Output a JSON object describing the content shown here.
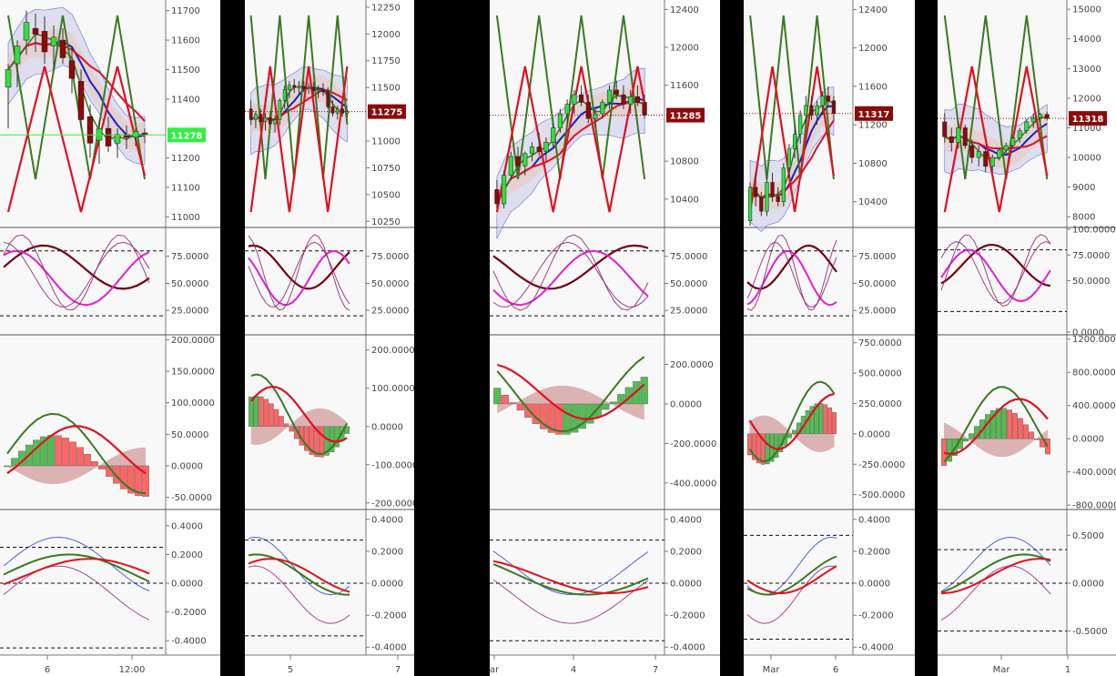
{
  "colors": {
    "up_candle": "#33dd44",
    "down_candle": "#8b0a0a",
    "band_fill": "#c8c8e6",
    "env_fill": "#e8c8c0",
    "red_line": "#e01020",
    "green_line": "#3a7a20",
    "blue_line": "#1020d0",
    "stoch_dark": "#700010",
    "stoch_pink": "#e020d0",
    "stoch_purple": "#902070",
    "hist_up": "#55bb55",
    "hist_down": "#ff6666",
    "badge_green": "#33ee44",
    "badge_red": "#8b0a0a"
  },
  "chart_data": [
    {
      "type": "line",
      "panel": 1,
      "price": {
        "ticks": [
          "11700",
          "11600",
          "11500",
          "11400",
          "11300",
          "11200",
          "11100",
          "11000"
        ],
        "ylim": [
          10970,
          11730
        ],
        "last_label": "11278",
        "last_value": 11278,
        "badge_style": "green",
        "candles": [
          {
            "o": 11440,
            "h": 11520,
            "l": 11300,
            "c": 11500
          },
          {
            "o": 11520,
            "h": 11600,
            "l": 11440,
            "c": 11580
          },
          {
            "o": 11600,
            "h": 11700,
            "l": 11550,
            "c": 11660
          },
          {
            "o": 11640,
            "h": 11690,
            "l": 11560,
            "c": 11620
          },
          {
            "o": 11630,
            "h": 11680,
            "l": 11520,
            "c": 11560
          },
          {
            "o": 11580,
            "h": 11650,
            "l": 11500,
            "c": 11610
          },
          {
            "o": 11600,
            "h": 11640,
            "l": 11520,
            "c": 11540
          },
          {
            "o": 11530,
            "h": 11580,
            "l": 11420,
            "c": 11470
          },
          {
            "o": 11460,
            "h": 11500,
            "l": 11300,
            "c": 11330
          },
          {
            "o": 11340,
            "h": 11380,
            "l": 11200,
            "c": 11250
          },
          {
            "o": 11260,
            "h": 11330,
            "l": 11180,
            "c": 11300
          },
          {
            "o": 11300,
            "h": 11340,
            "l": 11220,
            "c": 11240
          },
          {
            "o": 11250,
            "h": 11300,
            "l": 11200,
            "c": 11280
          },
          {
            "o": 11280,
            "h": 11310,
            "l": 11230,
            "c": 11270
          },
          {
            "o": 11270,
            "h": 11300,
            "l": 11240,
            "c": 11290
          },
          {
            "o": 11285,
            "h": 11300,
            "l": 11250,
            "c": 11278
          }
        ]
      },
      "stoch": {
        "ticks": [
          "75.0000",
          "50.0000",
          "25.0000"
        ],
        "ylim": [
          5,
          100
        ],
        "dashed": [
          80,
          20
        ]
      },
      "macd": {
        "ticks": [
          "200.0000",
          "150.0000",
          "100.0000",
          "50.0000",
          "0.0000",
          "-50.0000"
        ],
        "ylim": [
          -65,
          205
        ]
      },
      "osc": {
        "ticks": [
          "0.4000",
          "0.2000",
          "0.0000",
          "-0.2000",
          "-0.4000"
        ],
        "ylim": [
          -0.5,
          0.5
        ],
        "dashed": [
          0.25,
          0.0,
          -0.45
        ]
      },
      "xticks": [
        "6",
        "12:00"
      ]
    },
    {
      "type": "line",
      "panel": 2,
      "price": {
        "ticks": [
          "12250",
          "12000",
          "11750",
          "11500",
          "11250",
          "11000",
          "10750",
          "10500",
          "10250"
        ],
        "ylim": [
          10210,
          12300
        ],
        "last_label": "11275",
        "last_value": 11275,
        "badge_style": "red",
        "candles": [
          {
            "o": 11300,
            "h": 11380,
            "l": 11150,
            "c": 11200
          },
          {
            "o": 11200,
            "h": 11280,
            "l": 11120,
            "c": 11250
          },
          {
            "o": 11250,
            "h": 11300,
            "l": 11150,
            "c": 11180
          },
          {
            "o": 11180,
            "h": 11260,
            "l": 11100,
            "c": 11220
          },
          {
            "o": 11220,
            "h": 11280,
            "l": 11130,
            "c": 11160
          },
          {
            "o": 11160,
            "h": 11240,
            "l": 11080,
            "c": 11200
          },
          {
            "o": 11200,
            "h": 11400,
            "l": 11150,
            "c": 11380
          },
          {
            "o": 11380,
            "h": 11520,
            "l": 11300,
            "c": 11480
          },
          {
            "o": 11480,
            "h": 11560,
            "l": 11400,
            "c": 11520
          },
          {
            "o": 11520,
            "h": 11580,
            "l": 11450,
            "c": 11500
          },
          {
            "o": 11500,
            "h": 11560,
            "l": 11440,
            "c": 11510
          },
          {
            "o": 11510,
            "h": 11560,
            "l": 11460,
            "c": 11490
          },
          {
            "o": 11490,
            "h": 11540,
            "l": 11440,
            "c": 11500
          },
          {
            "o": 11500,
            "h": 11550,
            "l": 11430,
            "c": 11470
          },
          {
            "o": 11470,
            "h": 11520,
            "l": 11400,
            "c": 11480
          },
          {
            "o": 11480,
            "h": 11540,
            "l": 11420,
            "c": 11460
          },
          {
            "o": 11460,
            "h": 11500,
            "l": 11300,
            "c": 11320
          },
          {
            "o": 11320,
            "h": 11380,
            "l": 11230,
            "c": 11260
          },
          {
            "o": 11260,
            "h": 11330,
            "l": 11200,
            "c": 11300
          },
          {
            "o": 11300,
            "h": 11340,
            "l": 11230,
            "c": 11260
          },
          {
            "o": 11260,
            "h": 11300,
            "l": 11220,
            "c": 11275
          }
        ]
      },
      "stoch": {
        "ticks": [
          "75.0000",
          "50.0000",
          "25.0000"
        ],
        "ylim": [
          5,
          100
        ],
        "dashed": [
          80,
          20
        ]
      },
      "macd": {
        "ticks": [
          "200.0000",
          "100.0000",
          "0.0000",
          "-100.0000",
          "-200.0000"
        ],
        "ylim": [
          -210,
          235
        ]
      },
      "osc": {
        "ticks": [
          "0.4000",
          "0.2000",
          "0.0000",
          "-0.2000",
          "-0.4000"
        ],
        "ylim": [
          -0.45,
          0.45
        ],
        "dashed": [
          0.27,
          0.0,
          -0.33
        ]
      },
      "xticks": [
        "5",
        "7"
      ]
    },
    {
      "type": "line",
      "panel": 3,
      "price": {
        "ticks": [
          "12400",
          "12000",
          "11600",
          "11200",
          "10800",
          "10400"
        ],
        "ylim": [
          10120,
          12480
        ],
        "last_label": "11285",
        "last_value": 11285,
        "badge_style": "red",
        "candles": [
          {
            "o": 10500,
            "h": 10600,
            "l": 10300,
            "c": 10350
          },
          {
            "o": 10350,
            "h": 10700,
            "l": 10300,
            "c": 10650
          },
          {
            "o": 10650,
            "h": 10900,
            "l": 10600,
            "c": 10850
          },
          {
            "o": 10850,
            "h": 10950,
            "l": 10700,
            "c": 10750
          },
          {
            "o": 10750,
            "h": 10900,
            "l": 10650,
            "c": 10880
          },
          {
            "o": 10880,
            "h": 11000,
            "l": 10800,
            "c": 10950
          },
          {
            "o": 10950,
            "h": 11100,
            "l": 10850,
            "c": 10900
          },
          {
            "o": 10900,
            "h": 11050,
            "l": 10800,
            "c": 11000
          },
          {
            "o": 11000,
            "h": 11200,
            "l": 10950,
            "c": 11150
          },
          {
            "o": 11150,
            "h": 11350,
            "l": 11100,
            "c": 11300
          },
          {
            "o": 11300,
            "h": 11450,
            "l": 11200,
            "c": 11400
          },
          {
            "o": 11400,
            "h": 11550,
            "l": 11300,
            "c": 11500
          },
          {
            "o": 11500,
            "h": 11600,
            "l": 11380,
            "c": 11420
          },
          {
            "o": 11420,
            "h": 11500,
            "l": 11200,
            "c": 11250
          },
          {
            "o": 11250,
            "h": 11350,
            "l": 11150,
            "c": 11300
          },
          {
            "o": 11300,
            "h": 11450,
            "l": 11250,
            "c": 11420
          },
          {
            "o": 11420,
            "h": 11600,
            "l": 11350,
            "c": 11550
          },
          {
            "o": 11550,
            "h": 11650,
            "l": 11450,
            "c": 11500
          },
          {
            "o": 11500,
            "h": 11600,
            "l": 11350,
            "c": 11400
          },
          {
            "o": 11400,
            "h": 11550,
            "l": 11300,
            "c": 11480
          },
          {
            "o": 11480,
            "h": 11600,
            "l": 11380,
            "c": 11420
          },
          {
            "o": 11420,
            "h": 11500,
            "l": 11250,
            "c": 11285
          }
        ]
      },
      "stoch": {
        "ticks": [
          "75.0000",
          "50.0000",
          "25.0000"
        ],
        "ylim": [
          5,
          100
        ],
        "dashed": [
          80,
          20
        ]
      },
      "macd": {
        "ticks": [
          "200.0000",
          "0.0000",
          "-200.0000",
          "-400.0000"
        ],
        "ylim": [
          -520,
          340
        ]
      },
      "osc": {
        "ticks": [
          "0.4000",
          "0.2000",
          "0.0000",
          "-0.2000",
          "-0.4000"
        ],
        "ylim": [
          -0.45,
          0.45
        ],
        "dashed": [
          0.27,
          0.0,
          -0.36
        ]
      },
      "xticks": [
        "ar",
        "4",
        "7"
      ]
    },
    {
      "type": "line",
      "panel": 4,
      "price": {
        "ticks": [
          "12400",
          "12000",
          "11600",
          "11200",
          "10800",
          "10400"
        ],
        "ylim": [
          10150,
          12480
        ],
        "last_label": "11317",
        "last_value": 11317,
        "badge_style": "red",
        "candles": [
          {
            "o": 10200,
            "h": 10600,
            "l": 10150,
            "c": 10550
          },
          {
            "o": 10550,
            "h": 10700,
            "l": 10350,
            "c": 10450
          },
          {
            "o": 10450,
            "h": 10500,
            "l": 10250,
            "c": 10300
          },
          {
            "o": 10300,
            "h": 10650,
            "l": 10250,
            "c": 10600
          },
          {
            "o": 10600,
            "h": 10700,
            "l": 10400,
            "c": 10450
          },
          {
            "o": 10450,
            "h": 10550,
            "l": 10350,
            "c": 10400
          },
          {
            "o": 10400,
            "h": 10800,
            "l": 10350,
            "c": 10750
          },
          {
            "o": 10750,
            "h": 11000,
            "l": 10650,
            "c": 10950
          },
          {
            "o": 10950,
            "h": 11200,
            "l": 10850,
            "c": 11100
          },
          {
            "o": 11100,
            "h": 11350,
            "l": 11000,
            "c": 11300
          },
          {
            "o": 11300,
            "h": 11500,
            "l": 11200,
            "c": 11400
          },
          {
            "o": 11400,
            "h": 11500,
            "l": 11250,
            "c": 11300
          },
          {
            "o": 11300,
            "h": 11450,
            "l": 11200,
            "c": 11400
          },
          {
            "o": 11400,
            "h": 11550,
            "l": 11300,
            "c": 11500
          },
          {
            "o": 11500,
            "h": 11600,
            "l": 11380,
            "c": 11450
          },
          {
            "o": 11450,
            "h": 11500,
            "l": 11250,
            "c": 11317
          }
        ]
      },
      "stoch": {
        "ticks": [
          "75.0000",
          "50.0000",
          "25.0000"
        ],
        "ylim": [
          5,
          100
        ],
        "dashed": [
          80,
          20
        ]
      },
      "macd": {
        "ticks": [
          "750.0000",
          "500.0000",
          "250.0000",
          "0.0000",
          "-250.0000",
          "-500.0000"
        ],
        "ylim": [
          -600,
          800
        ]
      },
      "osc": {
        "ticks": [
          "0.4000",
          "0.2000",
          "0.0000",
          "-0.2000",
          "-0.4000"
        ],
        "ylim": [
          -0.45,
          0.45
        ],
        "dashed": [
          0.3,
          0.0,
          -0.35
        ]
      },
      "xticks": [
        "Mar",
        "6"
      ]
    },
    {
      "type": "line",
      "panel": 5,
      "price": {
        "ticks": [
          "15000",
          "14000",
          "13000",
          "12000",
          "11000",
          "10000",
          "9000",
          "8000"
        ],
        "ylim": [
          7700,
          15250
        ],
        "last_label": "11318",
        "last_value": 11318,
        "badge_style": "red",
        "candles": [
          {
            "o": 11200,
            "h": 11500,
            "l": 10500,
            "c": 10700
          },
          {
            "o": 10700,
            "h": 11000,
            "l": 10200,
            "c": 10500
          },
          {
            "o": 10500,
            "h": 11200,
            "l": 10300,
            "c": 11000
          },
          {
            "o": 11000,
            "h": 11100,
            "l": 10300,
            "c": 10400
          },
          {
            "o": 10400,
            "h": 10600,
            "l": 9800,
            "c": 10000
          },
          {
            "o": 10000,
            "h": 10400,
            "l": 9700,
            "c": 10200
          },
          {
            "o": 10200,
            "h": 10300,
            "l": 9500,
            "c": 9700
          },
          {
            "o": 9700,
            "h": 10100,
            "l": 9500,
            "c": 10000
          },
          {
            "o": 10000,
            "h": 10300,
            "l": 9900,
            "c": 10250
          },
          {
            "o": 10250,
            "h": 10500,
            "l": 10100,
            "c": 10400
          },
          {
            "o": 10400,
            "h": 10700,
            "l": 10300,
            "c": 10650
          },
          {
            "o": 10650,
            "h": 11000,
            "l": 10500,
            "c": 10900
          },
          {
            "o": 10900,
            "h": 11300,
            "l": 10800,
            "c": 11200
          },
          {
            "o": 11200,
            "h": 11500,
            "l": 11000,
            "c": 11350
          },
          {
            "o": 11350,
            "h": 11500,
            "l": 11200,
            "c": 11450
          },
          {
            "o": 11450,
            "h": 11550,
            "l": 11250,
            "c": 11318
          }
        ]
      },
      "stoch": {
        "ticks": [
          "100.0000",
          "75.0000",
          "50.0000",
          "0.0000"
        ],
        "ylim": [
          0,
          100
        ],
        "dashed": [
          80,
          20
        ]
      },
      "macd": {
        "ticks": [
          "1200.0000",
          "800.0000",
          "400.0000",
          "0.0000",
          "-400.0000",
          "-800.0000"
        ],
        "ylim": [
          -820,
          1230
        ]
      },
      "osc": {
        "ticks": [
          "0.5000",
          "0.0000",
          "-0.5000"
        ],
        "ylim": [
          -0.75,
          0.75
        ],
        "dashed": [
          0.35,
          0.0,
          -0.5
        ]
      },
      "xticks": [
        "Mar",
        "1"
      ]
    }
  ]
}
